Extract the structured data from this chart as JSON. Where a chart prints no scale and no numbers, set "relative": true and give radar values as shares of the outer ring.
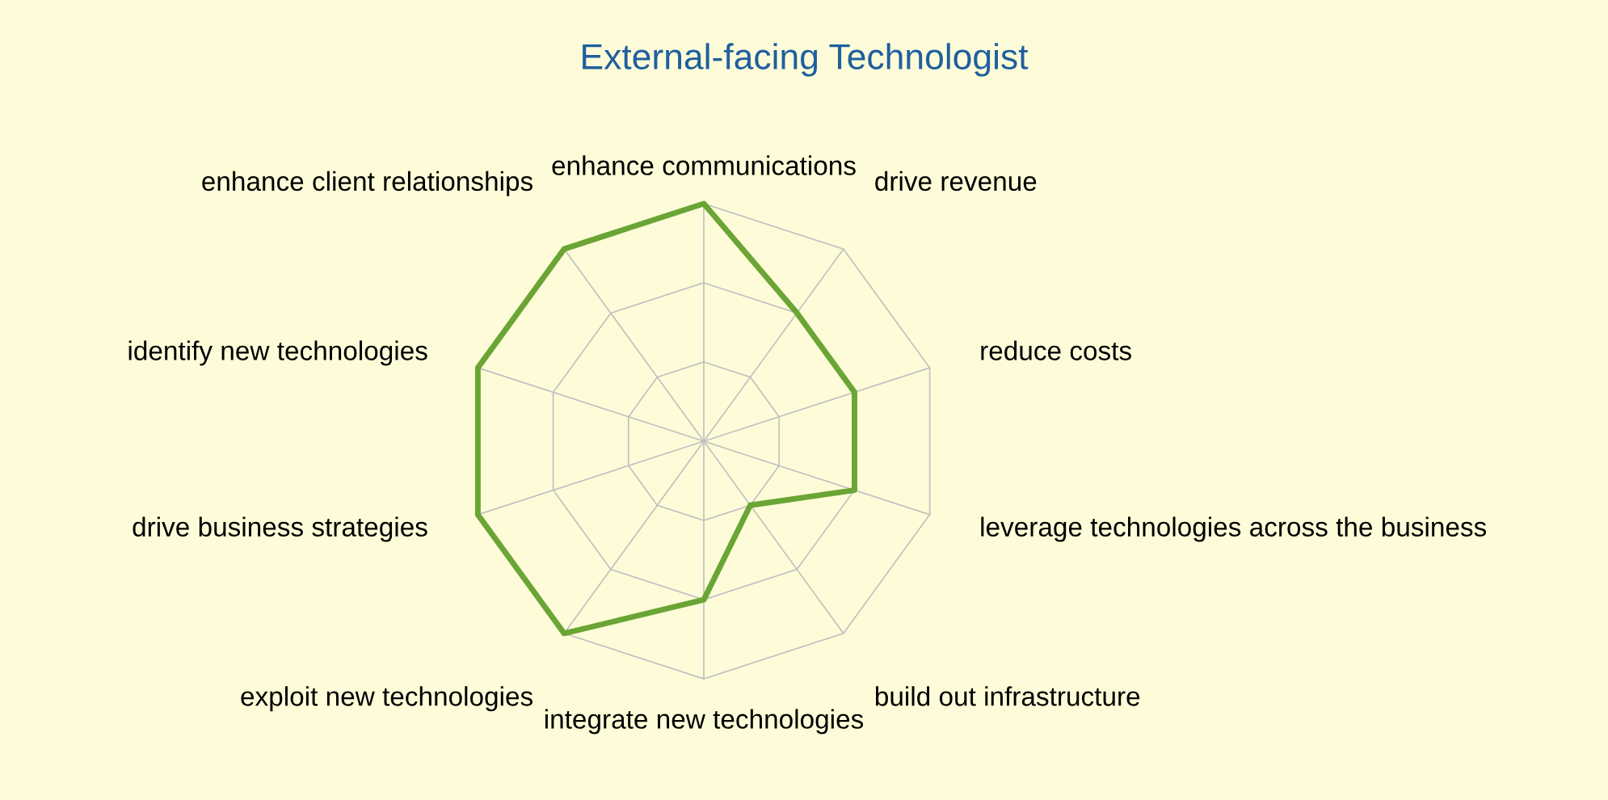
{
  "chart_data": {
    "type": "radar",
    "title": "External-facing Technologist",
    "relative": true,
    "categories": [
      "enhance communications",
      "drive revenue",
      "reduce costs",
      "leverage technologies across the business",
      "build out infrastructure",
      "integrate new technologies",
      "exploit new technologies",
      "drive business strategies",
      "identify new technologies",
      "enhance client relationships"
    ],
    "series": [
      {
        "color": "#6aa535",
        "values": [
          1,
          0.667,
          0.667,
          0.667,
          0.333,
          0.667,
          1,
          1,
          1,
          1
        ]
      }
    ],
    "grid": true,
    "marker": "none",
    "line_style": "solid"
  }
}
